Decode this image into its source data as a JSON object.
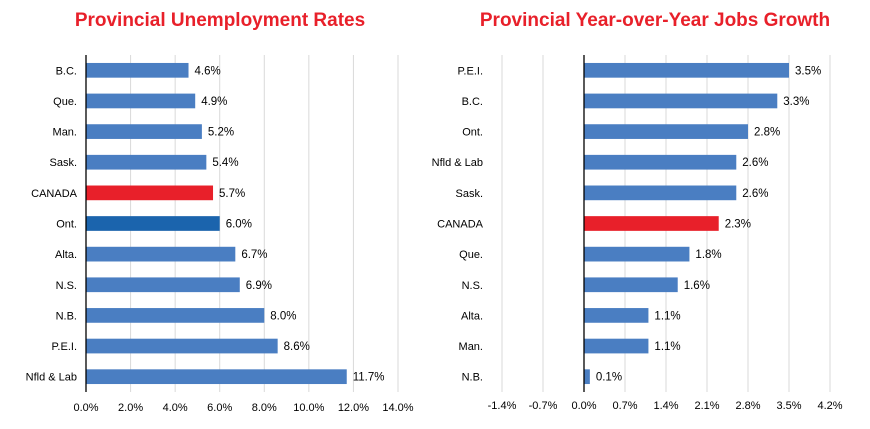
{
  "colors": {
    "bar": "#4a7ec2",
    "highlight_canada": "#e8202a",
    "highlight_ontario": "#1b64ad",
    "title": "#e8202a",
    "grid": "#d9d9d9"
  },
  "chart_data": [
    {
      "type": "bar",
      "orientation": "horizontal",
      "title": "Provincial Unemployment Rates",
      "categories": [
        "B.C.",
        "Que.",
        "Man.",
        "Sask.",
        "CANADA",
        "Ont.",
        "Alta.",
        "N.S.",
        "N.B.",
        "P.E.I.",
        "Nfld & Lab"
      ],
      "values": [
        4.6,
        4.9,
        5.2,
        5.4,
        5.7,
        6.0,
        6.7,
        6.9,
        8.0,
        8.6,
        11.7
      ],
      "value_labels": [
        "4.6%",
        "4.9%",
        "5.2%",
        "5.4%",
        "5.7%",
        "6.0%",
        "6.7%",
        "6.9%",
        "8.0%",
        "8.6%",
        "11.7%"
      ],
      "bar_colors": [
        "#4a7ec2",
        "#4a7ec2",
        "#4a7ec2",
        "#4a7ec2",
        "#e8202a",
        "#1b64ad",
        "#4a7ec2",
        "#4a7ec2",
        "#4a7ec2",
        "#4a7ec2",
        "#4a7ec2"
      ],
      "xlim": [
        0,
        14
      ],
      "xticks": [
        0,
        2,
        4,
        6,
        8,
        10,
        12,
        14
      ],
      "xtick_labels": [
        "0.0%",
        "2.0%",
        "4.0%",
        "6.0%",
        "8.0%",
        "10.0%",
        "12.0%",
        "14.0%"
      ],
      "grid": true
    },
    {
      "type": "bar",
      "orientation": "horizontal",
      "title": "Provincial Year-over-Year Jobs Growth",
      "categories": [
        "P.E.I.",
        "B.C.",
        "Ont.",
        "Nfld & Lab",
        "Sask.",
        "CANADA",
        "Que.",
        "N.S.",
        "Alta.",
        "Man.",
        "N.B."
      ],
      "values": [
        3.5,
        3.3,
        2.8,
        2.6,
        2.6,
        2.3,
        1.8,
        1.6,
        1.1,
        1.1,
        0.1
      ],
      "value_labels": [
        "3.5%",
        "3.3%",
        "2.8%",
        "2.6%",
        "2.6%",
        "2.3%",
        "1.8%",
        "1.6%",
        "1.1%",
        "1.1%",
        "0.1%"
      ],
      "bar_colors": [
        "#4a7ec2",
        "#4a7ec2",
        "#4a7ec2",
        "#4a7ec2",
        "#4a7ec2",
        "#e8202a",
        "#4a7ec2",
        "#4a7ec2",
        "#4a7ec2",
        "#4a7ec2",
        "#4a7ec2"
      ],
      "xlim": [
        -2.1,
        4.2
      ],
      "xticks": [
        -1.4,
        -0.7,
        0,
        0.7,
        1.4,
        2.1,
        2.8,
        3.5,
        4.2
      ],
      "xtick_labels": [
        "-1.4%",
        "-0.7%",
        "0.0%",
        "0.7%",
        "1.4%",
        "2.1%",
        "2.8%",
        "3.5%",
        "4.2%"
      ],
      "grid": true
    }
  ]
}
